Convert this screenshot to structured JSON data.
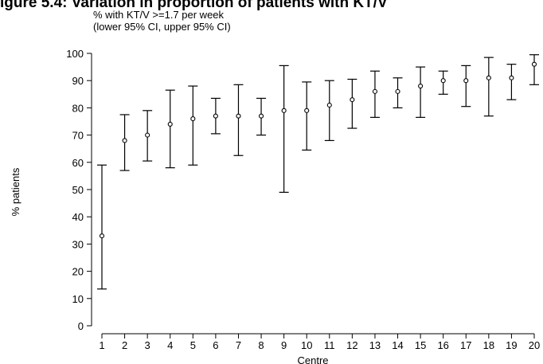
{
  "chart_data": {
    "type": "scatter",
    "header_partial": "igure 5.4: Variation in proportion of patients with KT/V",
    "subtitle_line1": "% with KT/V >=1.7 per week",
    "subtitle_line2": "(lower 95% CI, upper 95% CI)",
    "xlabel": "Centre",
    "ylabel": "% patients",
    "ylim": [
      0,
      100
    ],
    "yticks": [
      0,
      10,
      20,
      30,
      40,
      50,
      60,
      70,
      80,
      90,
      100
    ],
    "x": [
      1,
      2,
      3,
      4,
      5,
      6,
      7,
      8,
      9,
      10,
      11,
      12,
      13,
      14,
      15,
      16,
      17,
      18,
      19,
      20
    ],
    "values": [
      33,
      68,
      70,
      74,
      76,
      77,
      77,
      77,
      79,
      79,
      81,
      83,
      86,
      86,
      88,
      90,
      90,
      91,
      91,
      96
    ],
    "lower": [
      13.5,
      57,
      60.5,
      58,
      59,
      70.5,
      62.5,
      70,
      49,
      64.5,
      68,
      72.5,
      76.5,
      80,
      76.5,
      85,
      80.5,
      77,
      83,
      88.5
    ],
    "upper": [
      59,
      77.5,
      79,
      86.5,
      88,
      83.5,
      88.5,
      83.5,
      95.5,
      89.5,
      90,
      90.5,
      93.5,
      91,
      95,
      93.5,
      95.5,
      98.5,
      96,
      99.5
    ],
    "grid": false,
    "legend": "none"
  }
}
